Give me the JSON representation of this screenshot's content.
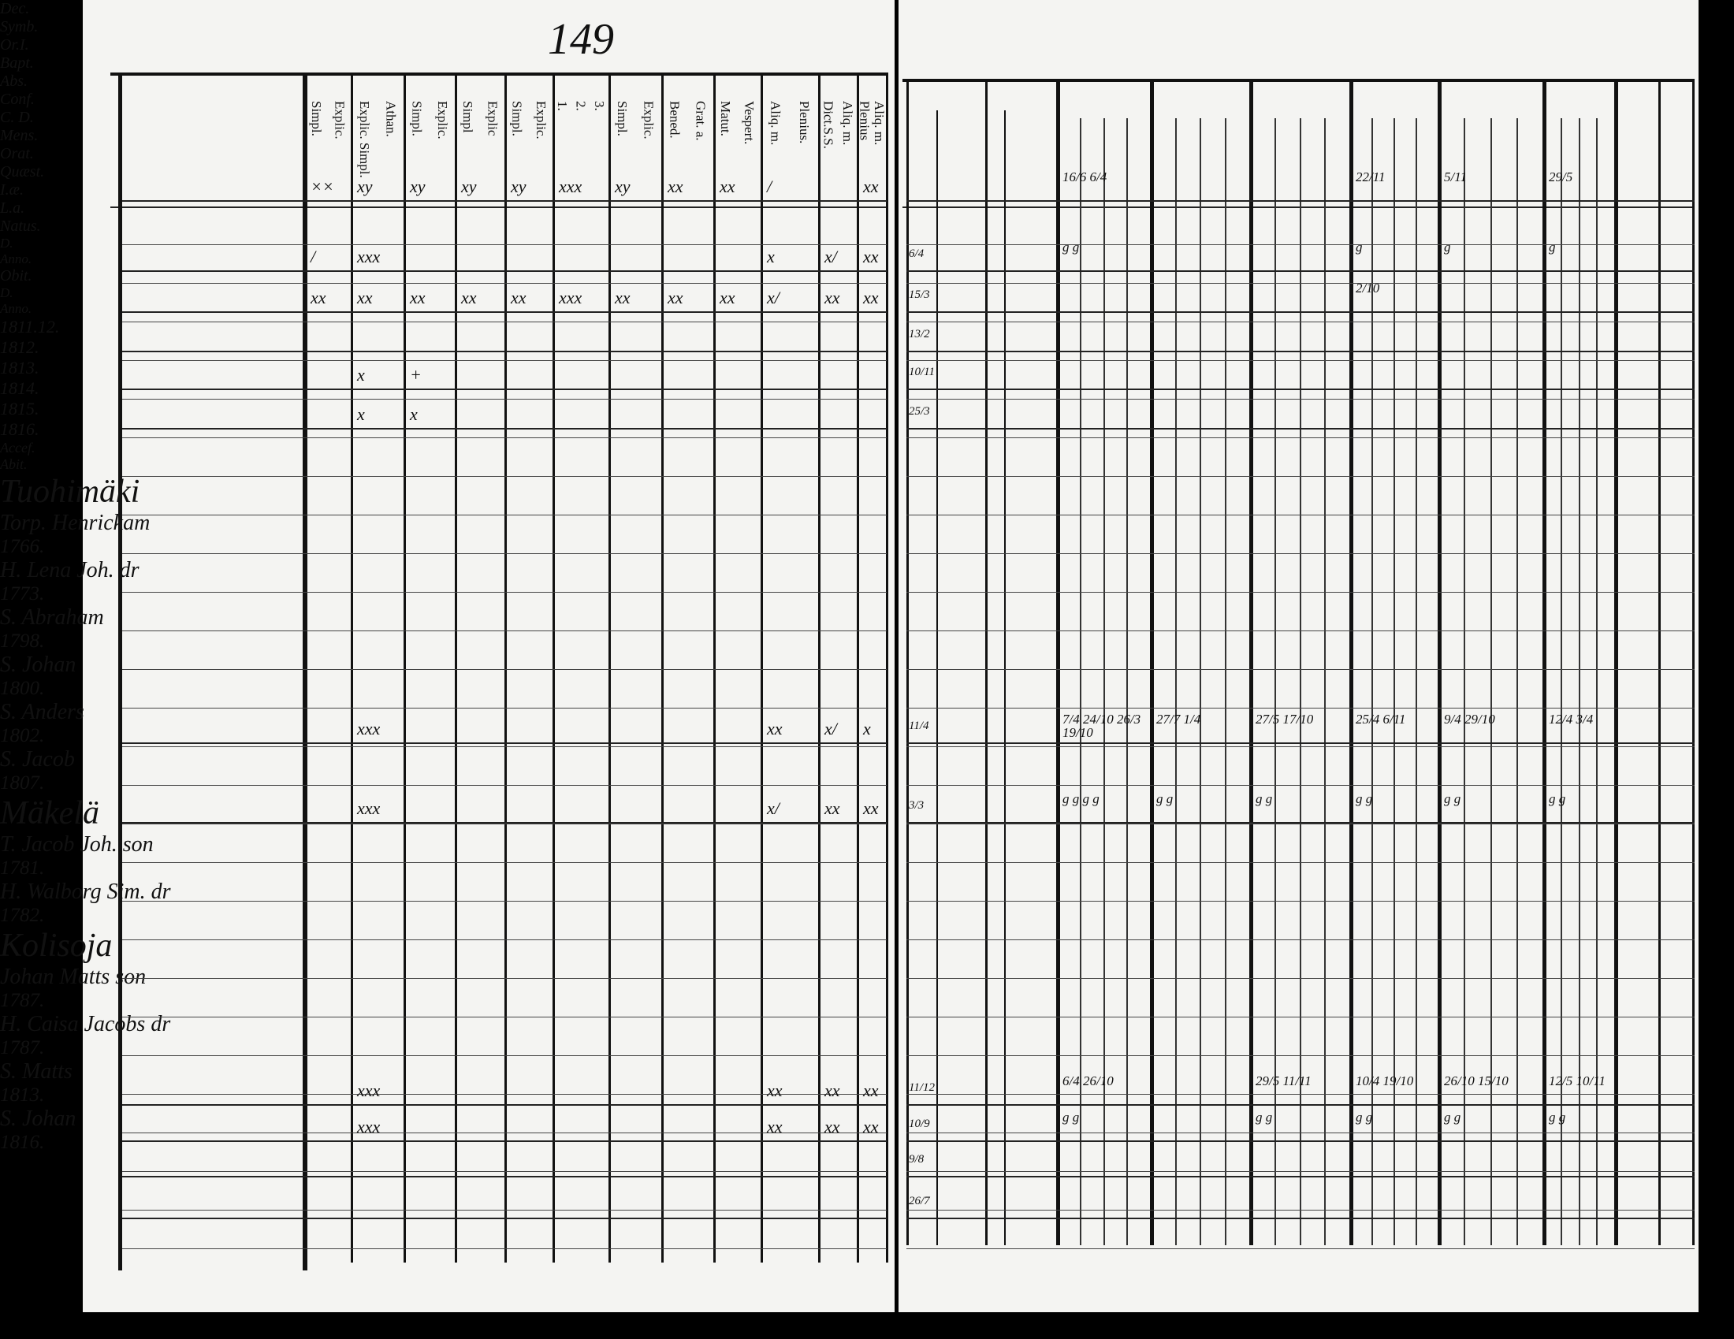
{
  "page_number": "149",
  "left_headers": [
    "Dec.",
    "Symb.",
    "Or.I.",
    "Bapt.",
    "Abs.",
    "Conf.",
    "C. D.",
    "Mens.",
    "Orat.",
    "Quæst.",
    "I.æ.",
    "L.a."
  ],
  "left_subheaders": [
    [
      "Simpl.",
      "Explic."
    ],
    [
      "Explic. Simpl.",
      "Athan."
    ],
    [
      "Simpl.",
      "Explic."
    ],
    [
      "Simpl",
      "Explic"
    ],
    [
      "Simpl.",
      "Explic."
    ],
    [
      "1.",
      "2.",
      "3."
    ],
    [
      "Simpl.",
      "Explic."
    ],
    [
      "Bened.",
      "Grat. a."
    ],
    [
      "Matut.",
      "Vespert."
    ],
    [
      "Aliq. m.",
      "Plenius."
    ],
    [
      "Dict.S.S.",
      "Aliq. m."
    ],
    [
      "Plenius",
      "Aliq. m."
    ]
  ],
  "right_headers": {
    "natus": "Natus.",
    "natus_d": "D.",
    "natus_anno": "Anno.",
    "obit": "Obit.",
    "obit_d": "D.",
    "obit_anno": "Anno.",
    "years": [
      "1811.12.",
      "1812.",
      "1813.",
      "1814.",
      "1815.",
      "1816."
    ],
    "accessit": "Accef.",
    "abiit": "Abit."
  },
  "entries": [
    {
      "name": "Tuohimäki",
      "type": "farm"
    },
    {
      "name": "Torp. Henrickam",
      "born_d": "",
      "born_year": "1766.",
      "marks": [
        "××",
        "xy",
        "xy",
        "xy",
        "xy",
        "xxx",
        "xy",
        "xx",
        "xx",
        "/",
        "",
        "xx"
      ],
      "years": [
        "16/6  6/4",
        "",
        "",
        "22/11",
        "5/11",
        "29/5"
      ]
    },
    {
      "name": "H. Lena Joh. dr",
      "born_d": "6/4",
      "born_year": "1773.",
      "marks": [
        "/",
        "xxx",
        "",
        "",
        "",
        "",
        "",
        "",
        "",
        "x",
        "x/",
        "xx"
      ],
      "years": [
        "g   g",
        "",
        "",
        "g",
        "g",
        "g"
      ]
    },
    {
      "name": "S. Abraham",
      "born_d": "15/3",
      "born_year": "1798.",
      "marks": [
        "xx",
        "xx",
        "xx",
        "xx",
        "xx",
        "xxx",
        "xx",
        "xx",
        "xx",
        "x/",
        "xx",
        "xx"
      ],
      "years": [
        "",
        "",
        "",
        "2/10",
        "",
        ""
      ]
    },
    {
      "name": "S. Johan",
      "born_d": "13/2",
      "born_year": "1800."
    },
    {
      "name": "S. Anders",
      "born_d": "10/11",
      "born_year": "1802.",
      "marks": [
        "",
        "x",
        "+",
        "",
        "",
        "",
        "",
        "",
        "",
        "",
        "",
        ""
      ]
    },
    {
      "name": "S. Jacob",
      "born_d": "25/3",
      "born_year": "1807.",
      "marks": [
        "",
        "x",
        "x",
        "",
        "",
        "",
        "",
        "",
        "",
        "",
        "",
        ""
      ]
    },
    {
      "name": "Mäkelä",
      "type": "farm"
    },
    {
      "name": "T. Jacob Joh. son",
      "born_d": "11/4",
      "born_year": "1781.",
      "marks": [
        "",
        "xxx",
        "",
        "",
        "",
        "",
        "",
        "",
        "",
        "xx",
        "x/",
        "x"
      ],
      "years": [
        "7/4 24/10 26/3 19/10",
        "27/7 1/4",
        "27/5 17/10",
        "25/4 6/11",
        "9/4 29/10",
        "12/4 3/4"
      ]
    },
    {
      "name": "H. Walborg Sim. dr",
      "born_d": "3/3",
      "born_year": "1782.",
      "marks": [
        "",
        "xxx",
        "",
        "",
        "",
        "",
        "",
        "",
        "",
        "x/",
        "xx",
        "xx"
      ],
      "years": [
        "g g g g",
        "g g",
        "g g",
        "g g",
        "g g",
        "g g"
      ]
    },
    {
      "name": "Kolisoja",
      "type": "farm"
    },
    {
      "name": "Johan Matts son",
      "born_d": "11/12",
      "born_year": "1787.",
      "marks": [
        "",
        "xxx",
        "",
        "",
        "",
        "",
        "",
        "",
        "",
        "xx",
        "xx",
        "xx"
      ],
      "years": [
        "6/4 26/10",
        "",
        "29/5 11/11",
        "10/4 19/10",
        "26/10 15/10",
        "12/5 10/11"
      ]
    },
    {
      "name": "H. Caisa Jacobs dr",
      "born_d": "10/9",
      "born_year": "1787.",
      "marks": [
        "",
        "xxx",
        "",
        "",
        "",
        "",
        "",
        "",
        "",
        "xx",
        "xx",
        "xx"
      ],
      "years": [
        "g g",
        "",
        "g g",
        "g g",
        "g g",
        "g g"
      ]
    },
    {
      "name": "S. Matts",
      "born_d": "9/8",
      "born_year": "1813."
    },
    {
      "name": "S. Johan",
      "born_d": "26/7",
      "born_year": "1816."
    }
  ]
}
